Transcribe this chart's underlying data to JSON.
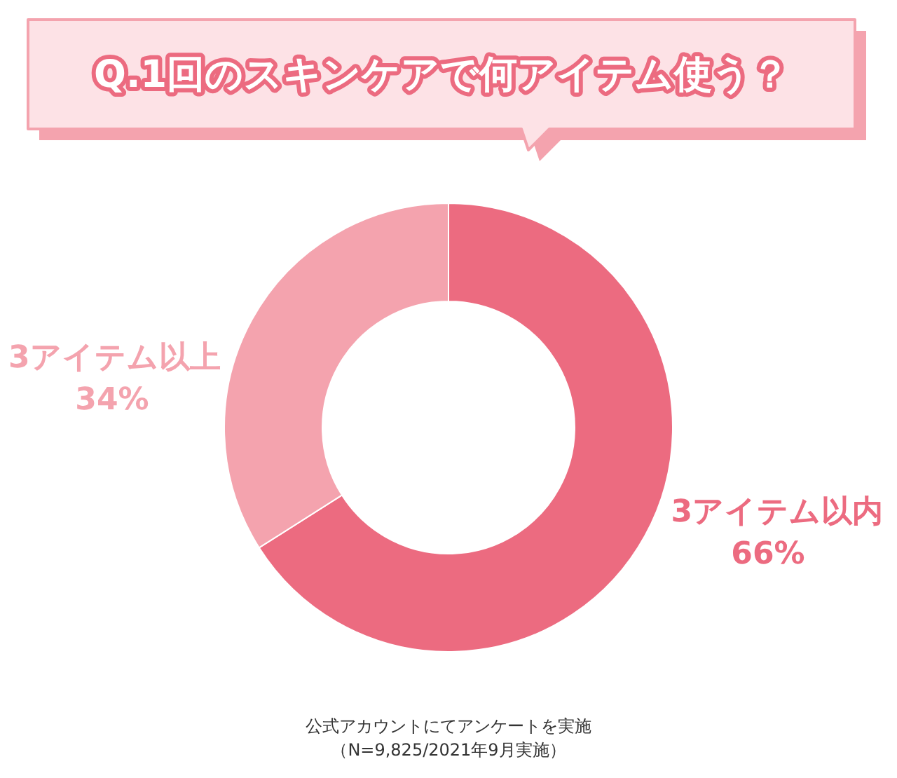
{
  "chart_data": {
    "type": "donut",
    "title": "Q.1回のスキンケアで何アイテム使う？",
    "categories": [
      "3アイテム以内",
      "3アイテム以上"
    ],
    "values": [
      66,
      34
    ],
    "value_labels": [
      "66%",
      "34%"
    ],
    "colors": [
      "#ec6b80",
      "#f4a3ae"
    ],
    "annotations": [
      "公式アカウントにてアンケートを実施",
      "（N=9,825/2021年9月実施）"
    ]
  }
}
